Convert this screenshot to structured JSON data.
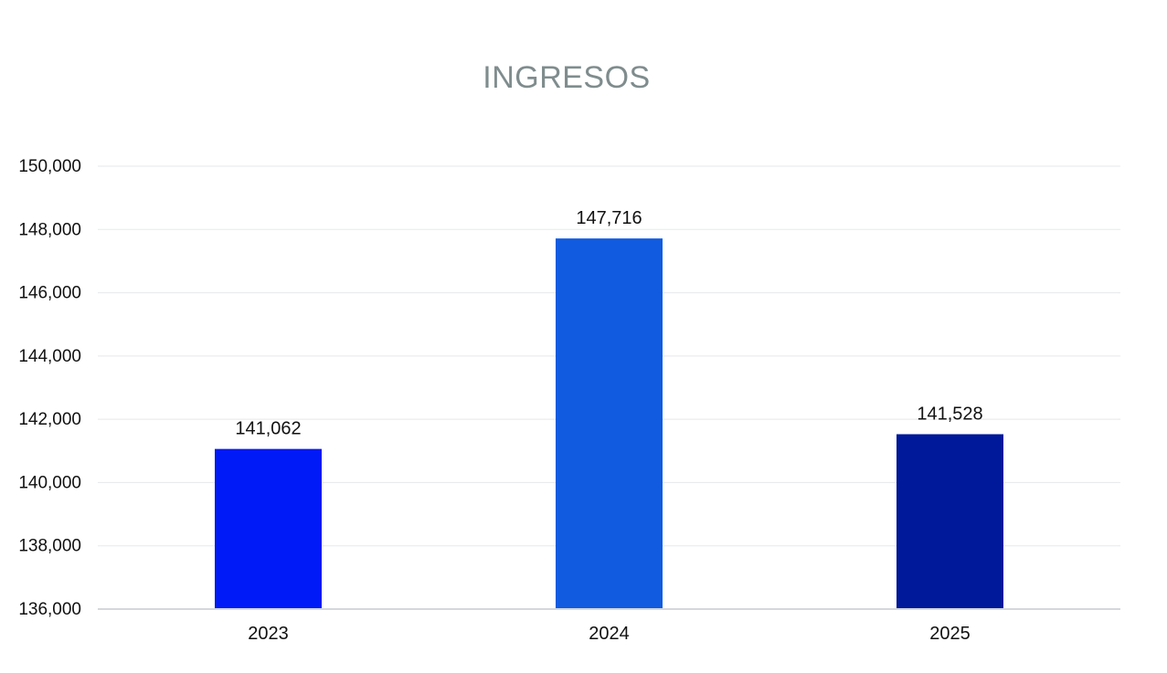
{
  "chart_data": {
    "type": "bar",
    "title": "INGRESOS",
    "categories": [
      "2023",
      "2024",
      "2025"
    ],
    "values": [
      141062,
      147716,
      141528
    ],
    "value_labels": [
      "141,062",
      "147,716",
      "141,528"
    ],
    "colors": [
      "#0019F7",
      "#105BE0",
      "#00189A"
    ],
    "ylim": [
      136000,
      150000
    ],
    "yticks": [
      136000,
      138000,
      140000,
      142000,
      144000,
      146000,
      148000,
      150000
    ],
    "ytick_labels": [
      "136,000",
      "138,000",
      "140,000",
      "142,000",
      "144,000",
      "146,000",
      "148,000",
      "150,000"
    ],
    "grid": true,
    "legend": "none",
    "xlabel": "",
    "ylabel": ""
  }
}
